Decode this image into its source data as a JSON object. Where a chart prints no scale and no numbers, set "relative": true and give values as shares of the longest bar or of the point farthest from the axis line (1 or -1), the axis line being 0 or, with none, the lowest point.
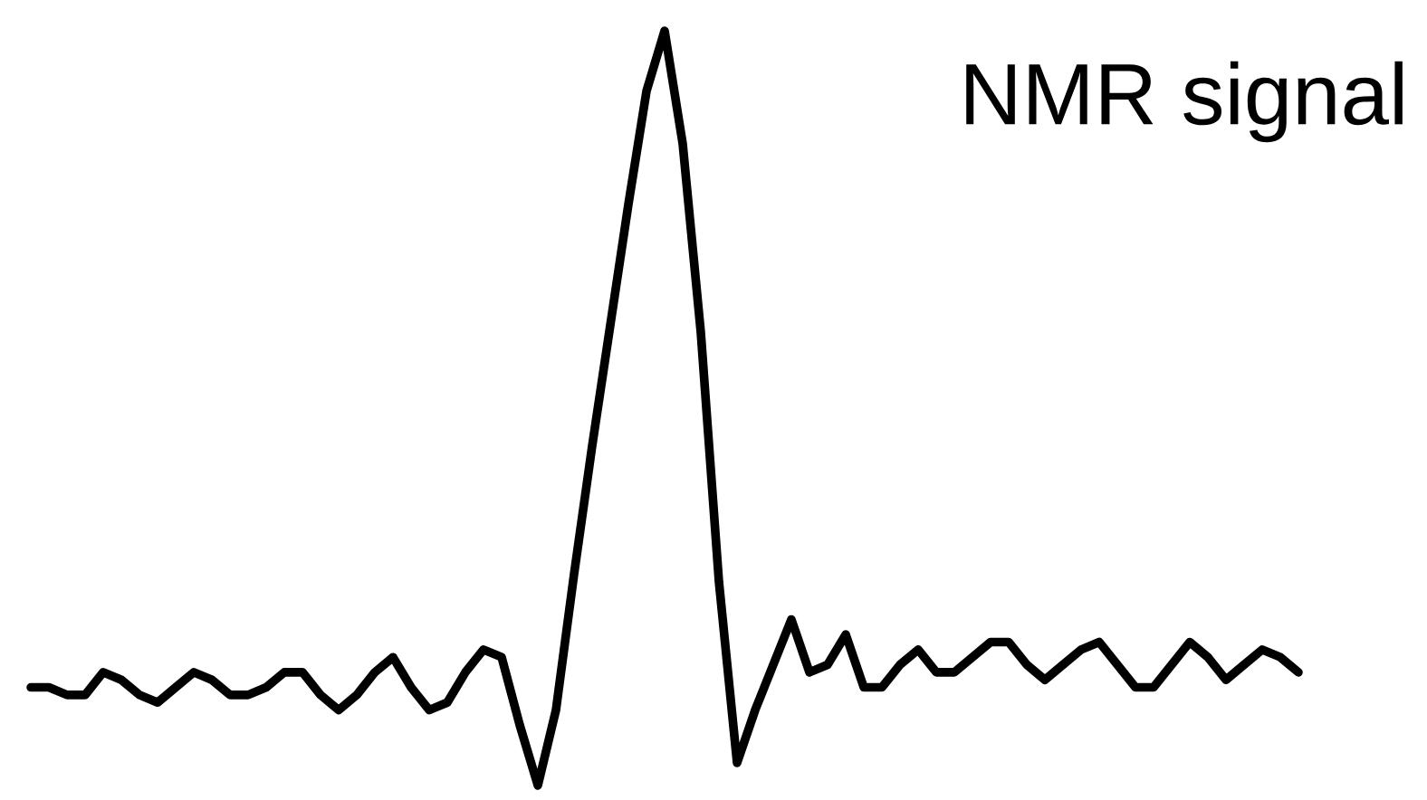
{
  "chart_data": {
    "type": "line",
    "title": "NMR signal",
    "relative": true,
    "color": "#000000",
    "categories": [
      null,
      null,
      null,
      null,
      null,
      null,
      null,
      null,
      null,
      null,
      null,
      null,
      null,
      null,
      null,
      null,
      null,
      null,
      null,
      null,
      null,
      null,
      null,
      null,
      null,
      null,
      null,
      null,
      null,
      null,
      null,
      null,
      null,
      null,
      null,
      null,
      null,
      null,
      null,
      null,
      null,
      null,
      null,
      null,
      null,
      null,
      null,
      null,
      null,
      null,
      null,
      null,
      null,
      null,
      null,
      null,
      null,
      null,
      null,
      null,
      null,
      null,
      null,
      null,
      null,
      null,
      null,
      null,
      null,
      null,
      null
    ],
    "values": [
      0.13,
      0.13,
      0.12,
      0.12,
      0.15,
      0.14,
      0.12,
      0.11,
      0.13,
      0.15,
      0.14,
      0.12,
      0.12,
      0.13,
      0.15,
      0.15,
      0.12,
      0.1,
      0.12,
      0.15,
      0.17,
      0.13,
      0.1,
      0.11,
      0.15,
      0.18,
      0.17,
      0.08,
      0,
      0.1,
      0.28,
      0.45,
      0.61,
      0.77,
      0.92,
      1,
      0.85,
      0.6,
      0.27,
      0.03,
      0.1,
      0.16,
      0.22,
      0.15,
      0.16,
      0.2,
      0.13,
      0.13,
      0.16,
      0.18,
      0.15,
      0.15,
      0.17,
      0.19,
      0.19,
      0.16,
      0.14,
      0.16,
      0.18,
      0.19,
      0.16,
      0.13,
      0.13,
      0.16,
      0.19,
      0.17,
      0.14,
      0.16,
      0.18,
      0.17,
      0.15
    ]
  }
}
